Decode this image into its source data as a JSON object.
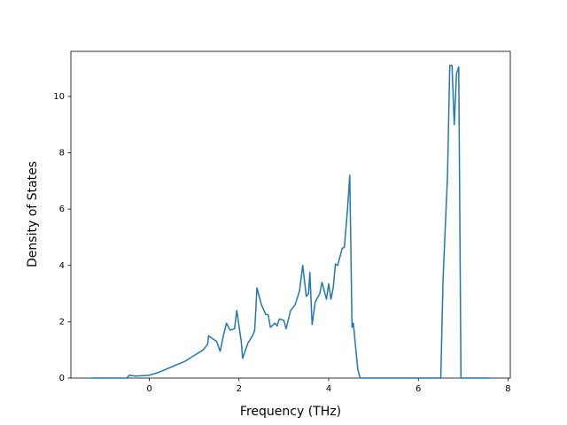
{
  "chart_data": {
    "type": "line",
    "xlabel": "Frequency (THz)",
    "ylabel": "Density of States",
    "color": "#1f77b4",
    "x": [
      -1.3,
      -0.5,
      -0.45,
      -0.3,
      0,
      0.2,
      0.5,
      0.8,
      1.0,
      1.2,
      1.3,
      1.32,
      1.5,
      1.58,
      1.65,
      1.72,
      1.8,
      1.9,
      1.95,
      2.05,
      2.08,
      2.2,
      2.3,
      2.35,
      2.4,
      2.5,
      2.6,
      2.65,
      2.7,
      2.8,
      2.85,
      2.9,
      3.0,
      3.05,
      3.15,
      3.25,
      3.35,
      3.42,
      3.5,
      3.55,
      3.58,
      3.63,
      3.7,
      3.8,
      3.85,
      3.95,
      4.0,
      4.05,
      4.1,
      4.15,
      4.2,
      4.3,
      4.35,
      4.42,
      4.47,
      4.52,
      4.55,
      4.6,
      4.65,
      4.7,
      6.5,
      6.55,
      6.65,
      6.7,
      6.75,
      6.8,
      6.85,
      6.9,
      6.95,
      7.6
    ],
    "values": [
      0,
      0,
      0.1,
      0.07,
      0.1,
      0.2,
      0.4,
      0.6,
      0.8,
      1.0,
      1.2,
      1.5,
      1.3,
      0.95,
      1.5,
      1.95,
      1.7,
      1.75,
      2.4,
      1.3,
      0.7,
      1.25,
      1.5,
      1.7,
      3.2,
      2.6,
      2.25,
      2.25,
      1.8,
      1.95,
      1.85,
      2.1,
      2.05,
      1.75,
      2.4,
      2.6,
      3.1,
      4.0,
      2.9,
      3.0,
      3.75,
      1.9,
      2.7,
      3.0,
      3.4,
      2.8,
      3.35,
      2.8,
      3.2,
      4.05,
      4.0,
      4.6,
      4.65,
      6.0,
      7.2,
      1.8,
      1.95,
      1.1,
      0.3,
      0,
      0,
      3.5,
      7.2,
      11.1,
      11.1,
      9.0,
      10.8,
      11.05,
      0,
      0
    ],
    "xlim": [
      -1.75,
      8.05
    ],
    "ylim": [
      0,
      11.6
    ],
    "xticks": [
      0,
      2,
      4,
      6,
      8
    ],
    "yticks": [
      0,
      2,
      4,
      6,
      8,
      10
    ]
  }
}
